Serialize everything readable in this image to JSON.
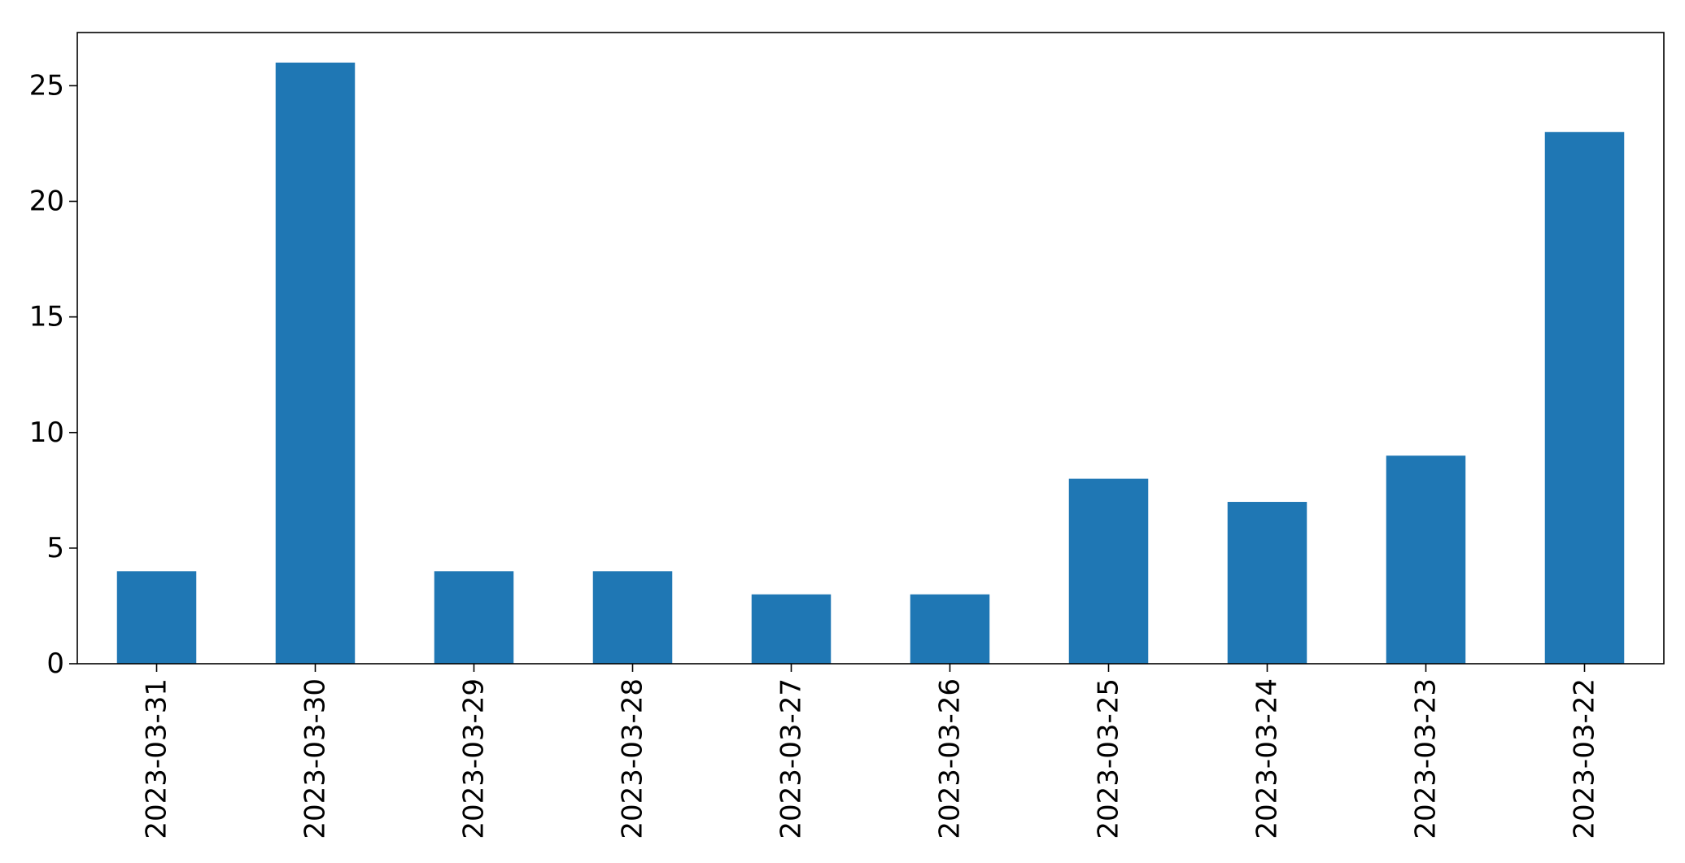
{
  "chart_data": {
    "type": "bar",
    "title": "",
    "xlabel": "",
    "ylabel": "",
    "categories": [
      "2023-03-31",
      "2023-03-30",
      "2023-03-29",
      "2023-03-28",
      "2023-03-27",
      "2023-03-26",
      "2023-03-25",
      "2023-03-24",
      "2023-03-23",
      "2023-03-22"
    ],
    "values": [
      4,
      26,
      4,
      4,
      3,
      3,
      8,
      7,
      9,
      23
    ],
    "ylim": [
      0,
      27.3
    ],
    "yticks": [
      0,
      5,
      10,
      15,
      20,
      25
    ],
    "bar_color": "#1f77b4",
    "grid": false,
    "legend": "none"
  }
}
